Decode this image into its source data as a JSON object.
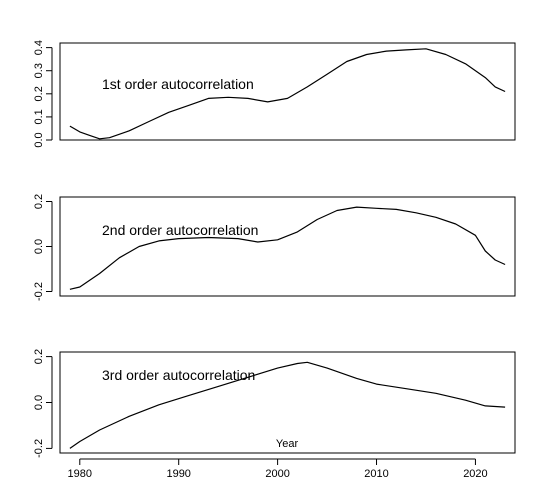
{
  "chart_data": [
    {
      "type": "line",
      "title": "1st order autocorrelation",
      "xlabel": "",
      "ylabel": "",
      "xlim": [
        1978,
        2024
      ],
      "ylim": [
        0.0,
        0.42
      ],
      "yticks": [
        0.0,
        0.1,
        0.2,
        0.3,
        0.4
      ],
      "ytick_labels": [
        "0.0",
        "0.1",
        "0.2",
        "0.3",
        "0.4"
      ],
      "x": [
        1979,
        1980,
        1981,
        1982,
        1983,
        1985,
        1987,
        1989,
        1991,
        1993,
        1995,
        1997,
        1999,
        2001,
        2003,
        2005,
        2007,
        2009,
        2011,
        2013,
        2015,
        2017,
        2019,
        2021,
        2022,
        2023
      ],
      "values": [
        0.06,
        0.035,
        0.02,
        0.005,
        0.01,
        0.04,
        0.08,
        0.12,
        0.15,
        0.18,
        0.185,
        0.18,
        0.165,
        0.18,
        0.23,
        0.285,
        0.34,
        0.37,
        0.385,
        0.39,
        0.395,
        0.37,
        0.33,
        0.27,
        0.23,
        0.21
      ]
    },
    {
      "type": "line",
      "title": "2nd order autocorrelation",
      "xlabel": "",
      "ylabel": "",
      "xlim": [
        1978,
        2024
      ],
      "ylim": [
        -0.22,
        0.22
      ],
      "yticks": [
        -0.2,
        0.0,
        0.2
      ],
      "ytick_labels": [
        "-0.2",
        "0.0",
        "0.2"
      ],
      "x": [
        1979,
        1980,
        1982,
        1984,
        1986,
        1988,
        1990,
        1993,
        1996,
        1998,
        2000,
        2002,
        2004,
        2006,
        2008,
        2010,
        2012,
        2014,
        2016,
        2018,
        2020,
        2021,
        2022,
        2023
      ],
      "values": [
        -0.19,
        -0.18,
        -0.12,
        -0.05,
        0.0,
        0.025,
        0.035,
        0.04,
        0.035,
        0.02,
        0.03,
        0.065,
        0.12,
        0.16,
        0.175,
        0.17,
        0.165,
        0.15,
        0.13,
        0.1,
        0.05,
        -0.02,
        -0.06,
        -0.08
      ]
    },
    {
      "type": "line",
      "title": "3rd order autocorrelation",
      "xlabel": "Year",
      "ylabel": "",
      "xlim": [
        1978,
        2024
      ],
      "ylim": [
        -0.22,
        0.22
      ],
      "yticks": [
        -0.2,
        0.0,
        0.2
      ],
      "ytick_labels": [
        "-0.2",
        "0.0",
        "0.2"
      ],
      "xticks": [
        1980,
        1990,
        2000,
        2010,
        2020
      ],
      "xtick_labels": [
        "1980",
        "1990",
        "2000",
        "2010",
        "2020"
      ],
      "x": [
        1979,
        1980,
        1982,
        1985,
        1988,
        1991,
        1994,
        1997,
        2000,
        2002,
        2003,
        2005,
        2008,
        2010,
        2013,
        2016,
        2019,
        2021,
        2023
      ],
      "values": [
        -0.2,
        -0.17,
        -0.12,
        -0.06,
        -0.01,
        0.03,
        0.07,
        0.11,
        0.15,
        0.17,
        0.175,
        0.15,
        0.105,
        0.08,
        0.06,
        0.04,
        0.01,
        -0.015,
        -0.02
      ]
    }
  ]
}
